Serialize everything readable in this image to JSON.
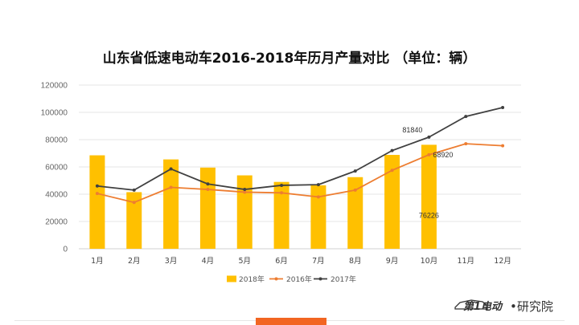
{
  "chart_data": {
    "type": "bar",
    "title": "山东省低速电动车2016-2018年历月产量对比 （单位：辆）",
    "categories": [
      "1月",
      "2月",
      "3月",
      "4月",
      "5月",
      "6月",
      "7月",
      "8月",
      "9月",
      "10月",
      "11月",
      "12月"
    ],
    "ylim": [
      0,
      120000
    ],
    "yticks": [
      "0",
      "20000",
      "40000",
      "60000",
      "80000",
      "100000",
      "120000"
    ],
    "grid": true,
    "legend_position": "bottom",
    "series": [
      {
        "name": "2018年",
        "type": "bar",
        "color": "#FFC000",
        "values": [
          68500,
          41500,
          65500,
          59500,
          53800,
          49000,
          46500,
          52500,
          68800,
          76226,
          null,
          null
        ]
      },
      {
        "name": "2016年",
        "type": "line",
        "color": "#ED7D31",
        "values": [
          40500,
          34000,
          45000,
          43500,
          41500,
          41000,
          38000,
          43000,
          57500,
          68920,
          77000,
          75500
        ]
      },
      {
        "name": "2017年",
        "type": "line",
        "color": "#404040",
        "values": [
          46000,
          43000,
          58500,
          47500,
          43500,
          46500,
          47000,
          57000,
          72000,
          81840,
          97000,
          103500
        ]
      }
    ],
    "annotations": [
      "81840",
      "68920",
      "76226"
    ]
  },
  "footer": {
    "brand": "第1电动",
    "suffix": "•研究院",
    "accent_color": "#F26522"
  }
}
